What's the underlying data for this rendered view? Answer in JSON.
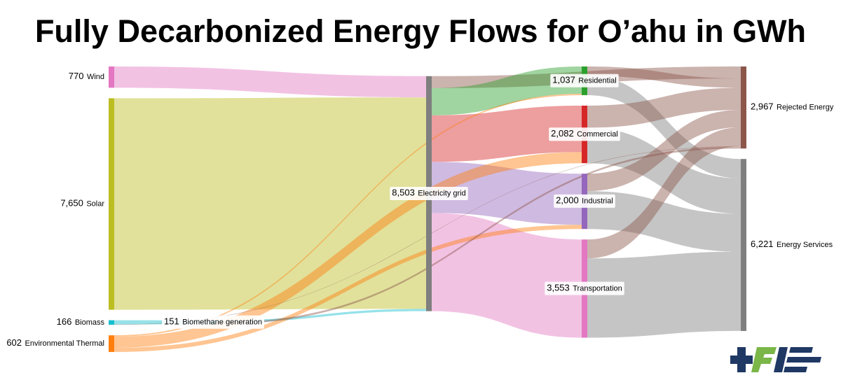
{
  "chart_data": {
    "type": "sankey",
    "title": "Fully Decarbonized Energy Flows for O’ahu in GWh",
    "nodes": [
      {
        "name": "Wind",
        "value": {
          "value": 770,
          "label": "770"
        },
        "color": "#e377c2"
      },
      {
        "name": "Solar",
        "value": {
          "value": 7650,
          "label": "7,650"
        },
        "color": "#bcbd22"
      },
      {
        "name": "Biomass",
        "value": {
          "value": 166,
          "label": "166"
        },
        "color": "#17becf"
      },
      {
        "name": "Environmental Thermal",
        "value": {
          "value": 602,
          "label": "602"
        },
        "color": "#ff7f0e"
      },
      {
        "name": "Biomethane generation",
        "value": {
          "value": 151,
          "label": "151"
        },
        "color": "#17becf"
      },
      {
        "name": "Electricity grid",
        "value": {
          "value": 8503,
          "label": "8,503"
        },
        "color": "#7f7f7f"
      },
      {
        "name": "Residential",
        "value": {
          "value": 1037,
          "label": "1,037"
        },
        "color": "#2ca02c"
      },
      {
        "name": "Commercial",
        "value": {
          "value": 2082,
          "label": "2,082"
        },
        "color": "#d62728"
      },
      {
        "name": "Industrial",
        "value": {
          "value": 2000,
          "label": "2,000"
        },
        "color": "#9467bd"
      },
      {
        "name": "Transportation",
        "value": {
          "value": 3553,
          "label": "3,553"
        },
        "color": "#e377c2"
      },
      {
        "name": "Rejected Energy",
        "value": {
          "value": 2967,
          "label": "2,967"
        },
        "color": "#8c564b"
      },
      {
        "name": "Energy Services",
        "value": {
          "value": 6221,
          "label": "6,221"
        },
        "color": "#7f7f7f"
      }
    ],
    "links": [
      {
        "source": 0,
        "target": 5,
        "value": 770,
        "color": "#e377c2"
      },
      {
        "source": 1,
        "target": 5,
        "value": 7650,
        "color": "#bcbd22"
      },
      {
        "source": 2,
        "target": 4,
        "value": 151,
        "color": "#17becf"
      },
      {
        "source": 4,
        "target": 5,
        "value": 83,
        "color": "#17becf"
      },
      {
        "source": 5,
        "target": 10,
        "value": 433,
        "color": "#8c564b"
      },
      {
        "source": 5,
        "target": 6,
        "value": 987,
        "color": "#2ca02c"
      },
      {
        "source": 5,
        "target": 7,
        "value": 1682,
        "color": "#d62728"
      },
      {
        "source": 5,
        "target": 8,
        "value": 1848,
        "color": "#9467bd"
      },
      {
        "source": 5,
        "target": 9,
        "value": 3553,
        "color": "#e377c2"
      },
      {
        "source": 3,
        "target": 6,
        "value": 50,
        "color": "#ff7f0e"
      },
      {
        "source": 3,
        "target": 7,
        "value": 400,
        "color": "#ff7f0e"
      },
      {
        "source": 3,
        "target": 8,
        "value": 152,
        "color": "#ff7f0e"
      },
      {
        "source": 6,
        "target": 10,
        "value": 336,
        "color": "#8c564b"
      },
      {
        "source": 6,
        "target": 11,
        "value": 701,
        "color": "#7f7f7f"
      },
      {
        "source": 7,
        "target": 10,
        "value": 800,
        "color": "#8c564b"
      },
      {
        "source": 7,
        "target": 11,
        "value": 1282,
        "color": "#7f7f7f"
      },
      {
        "source": 8,
        "target": 10,
        "value": 630,
        "color": "#8c564b"
      },
      {
        "source": 8,
        "target": 11,
        "value": 1370,
        "color": "#7f7f7f"
      },
      {
        "source": 9,
        "target": 10,
        "value": 685,
        "color": "#8c564b"
      },
      {
        "source": 9,
        "target": 11,
        "value": 2868,
        "color": "#7f7f7f"
      },
      {
        "source": 2,
        "target": 10,
        "value": 15,
        "color": "#8c564b"
      },
      {
        "source": 4,
        "target": 10,
        "value": 68,
        "color": "#8c564b"
      }
    ]
  }
}
